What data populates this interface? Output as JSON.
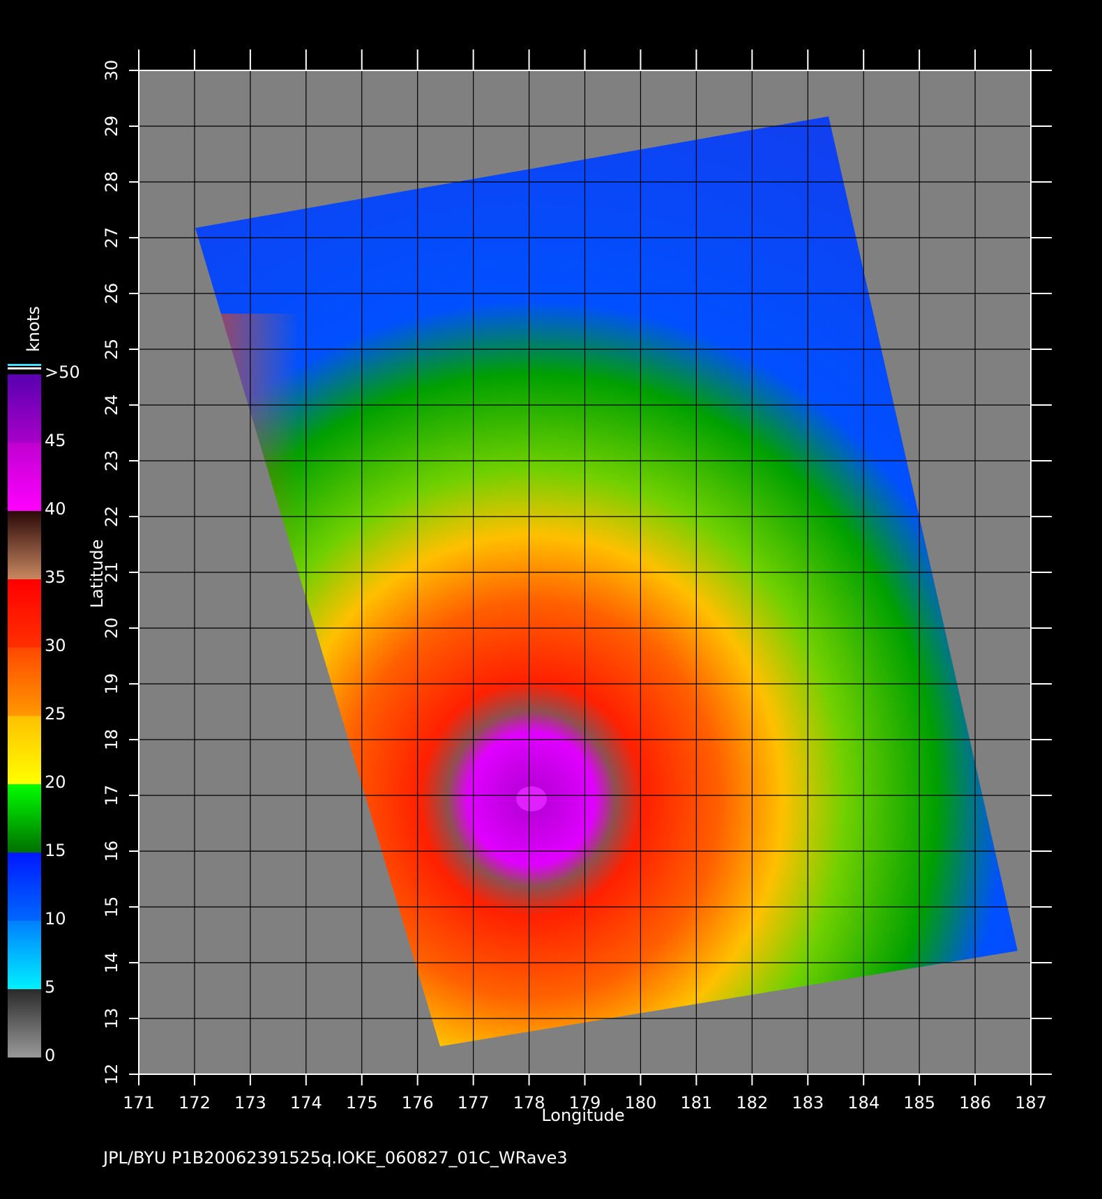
{
  "chart_data": {
    "type": "map",
    "xlabel": "Longitude",
    "ylabel": "Latitude",
    "footer": "JPL/BYU  P1B20062391525q.IOKE_060827_01C_WRave3",
    "xlim": [
      171,
      187
    ],
    "xticks": [
      171,
      172,
      173,
      174,
      175,
      176,
      177,
      178,
      179,
      180,
      181,
      182,
      183,
      184,
      185,
      186,
      187
    ],
    "ylim": [
      12,
      30
    ],
    "yticks": [
      12,
      13,
      14,
      15,
      16,
      17,
      18,
      19,
      20,
      21,
      22,
      23,
      24,
      25,
      26,
      27,
      28,
      29,
      30
    ],
    "grid": true,
    "colorbar": {
      "label": "knots",
      "lim": [
        0,
        50
      ],
      "ticks": [
        0,
        5,
        10,
        15,
        20,
        25,
        30,
        35,
        40,
        45,
        {
          "value": 50,
          "label": ">50"
        }
      ],
      "colors": [
        [
          "#9a9a9a",
          "#2a2a2a"
        ],
        [
          "#00f0ff",
          "#0080ff"
        ],
        [
          "#0068ff",
          "#0018ff"
        ],
        [
          "#007000",
          "#00ff00"
        ],
        [
          "#ffff00",
          "#ffc000"
        ],
        [
          "#ff9800",
          "#ff4800"
        ],
        [
          "#ff3000",
          "#ff0000"
        ],
        [
          "#c88860",
          "#2a0808"
        ],
        [
          "#ff00ff",
          "#c000d0"
        ],
        [
          "#a800c8",
          "#5800b0"
        ]
      ]
    }
  }
}
